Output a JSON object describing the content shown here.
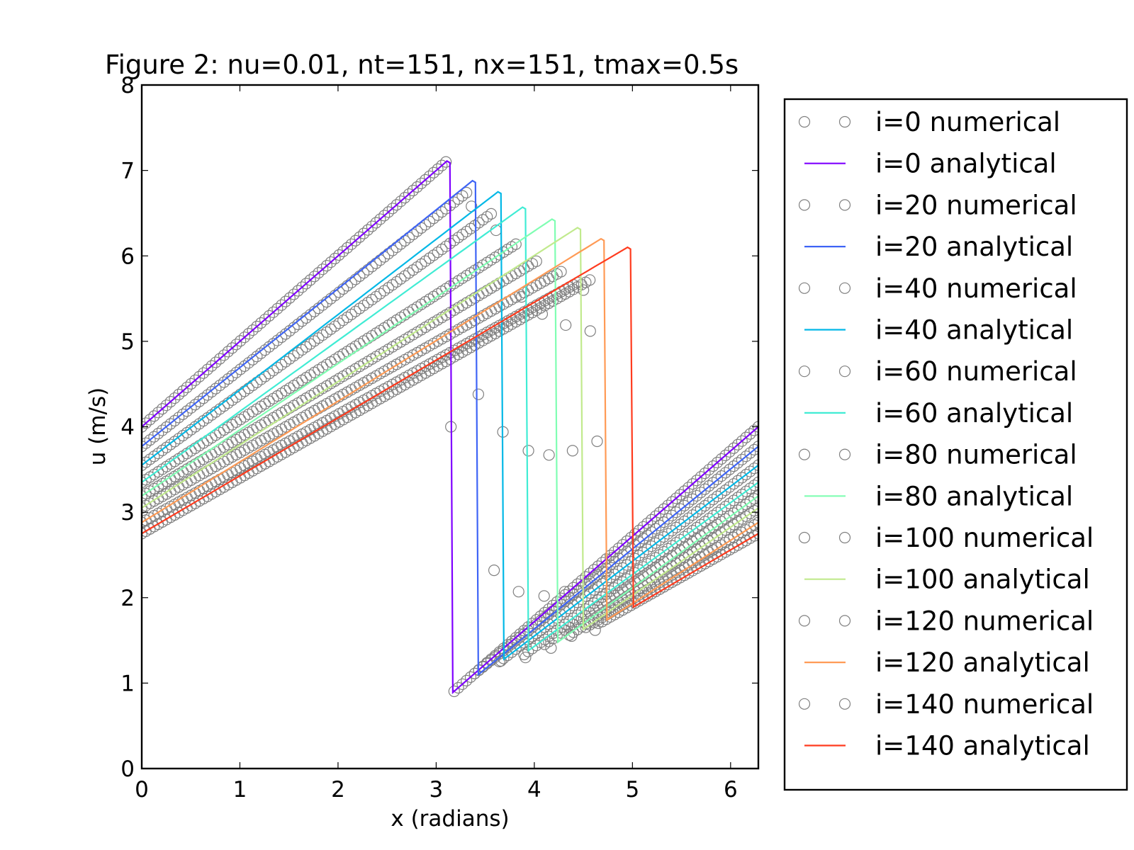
{
  "chart_data": {
    "type": "line",
    "title": "Figure 2: nu=0.01, nt=151, nx=151, tmax=0.5s",
    "xlabel": "x (radians)",
    "ylabel": "u (m/s)",
    "xlim": [
      0,
      6.283
    ],
    "ylim": [
      0,
      8
    ],
    "xticks": [
      "0",
      "1",
      "2",
      "3",
      "4",
      "5",
      "6"
    ],
    "yticks": [
      "0",
      "1",
      "2",
      "3",
      "4",
      "5",
      "6",
      "7",
      "8"
    ],
    "grid": false,
    "legend_position": "outside-right",
    "marker_color": "#808080",
    "series": [
      {
        "name": "i=0 numerical",
        "marker": "open-circle",
        "u_left": 4.0,
        "shock_x": 3.11,
        "peak": 7.11,
        "trough": 0.89,
        "overshoot": [
          4.0
        ],
        "undershoot": []
      },
      {
        "name": "i=0 analytical",
        "color": "#7f00ff",
        "u_left": 4.0,
        "shock_x": 3.11,
        "peak": 7.11,
        "trough": 0.89
      },
      {
        "name": "i=20 numerical",
        "marker": "open-circle",
        "u_left": 3.77,
        "shock_x": 3.32,
        "peak": 6.75,
        "trough": 1.1,
        "overshoot": [
          6.58,
          4.38
        ],
        "undershoot": [
          2.32,
          1.26
        ]
      },
      {
        "name": "i=20 analytical",
        "color": "#3e64f6",
        "u_left": 3.77,
        "shock_x": 3.37,
        "peak": 6.88,
        "trough": 1.1
      },
      {
        "name": "i=40 numerical",
        "marker": "open-circle",
        "u_left": 3.55,
        "shock_x": 3.57,
        "peak": 6.5,
        "trough": 1.24,
        "overshoot": [
          6.3,
          3.94
        ],
        "undershoot": [
          2.07,
          1.3
        ]
      },
      {
        "name": "i=40 analytical",
        "color": "#02b8e6",
        "u_left": 3.55,
        "shock_x": 3.63,
        "peak": 6.75,
        "trough": 1.28
      },
      {
        "name": "i=60 numerical",
        "marker": "open-circle",
        "u_left": 3.35,
        "shock_x": 3.83,
        "peak": 6.15,
        "trough": 1.33,
        "overshoot": [
          5.52,
          3.72
        ],
        "undershoot": [
          2.02,
          1.41
        ]
      },
      {
        "name": "i=60 analytical",
        "color": "#40ecd4",
        "u_left": 3.35,
        "shock_x": 3.88,
        "peak": 6.57,
        "trough": 1.38
      },
      {
        "name": "i=80 numerical",
        "marker": "open-circle",
        "u_left": 3.19,
        "shock_x": 4.04,
        "peak": 5.95,
        "trough": 1.45,
        "overshoot": [
          5.32,
          3.67
        ],
        "undershoot": [
          2.07,
          1.55
        ]
      },
      {
        "name": "i=80 analytical",
        "color": "#80feb3",
        "u_left": 3.19,
        "shock_x": 4.18,
        "peak": 6.43,
        "trough": 1.48
      },
      {
        "name": "i=100 numerical",
        "marker": "open-circle",
        "u_left": 3.05,
        "shock_x": 4.28,
        "peak": 5.82,
        "trough": 1.55,
        "overshoot": [
          5.19,
          3.72
        ],
        "undershoot": [
          2.16,
          1.62
        ]
      },
      {
        "name": "i=100 analytical",
        "color": "#c1ea8d",
        "u_left": 3.05,
        "shock_x": 4.44,
        "peak": 6.33,
        "trough": 1.63
      },
      {
        "name": "i=120 numerical",
        "marker": "open-circle",
        "u_left": 2.88,
        "shock_x": 4.46,
        "peak": 5.7,
        "trough": 1.65,
        "overshoot": [
          5.6,
          5.12,
          3.83
        ],
        "undershoot": [
          2.3,
          2.47
        ]
      },
      {
        "name": "i=120 analytical",
        "color": "#ff9a55",
        "u_left": 2.88,
        "shock_x": 4.68,
        "peak": 6.2,
        "trough": 1.74
      },
      {
        "name": "i=140 numerical",
        "marker": "open-circle",
        "u_left": 2.75,
        "shock_x": 4.6,
        "peak": 5.74,
        "trough": 1.7,
        "overshoot": [],
        "undershoot": []
      },
      {
        "name": "i=140 analytical",
        "color": "#ff3b1e",
        "u_left": 2.75,
        "shock_x": 4.95,
        "peak": 6.1,
        "trough": 1.89
      }
    ]
  }
}
